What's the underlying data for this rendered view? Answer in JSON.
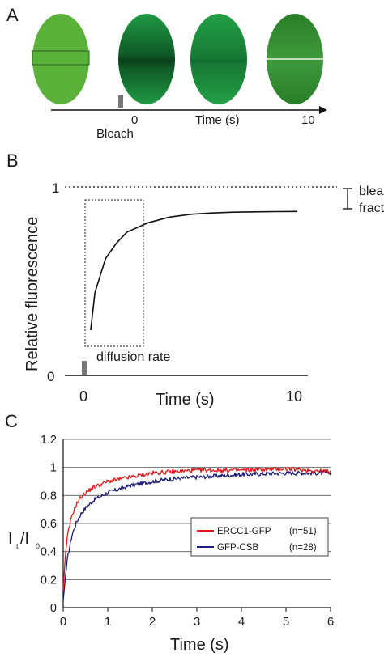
{
  "panels": {
    "a": {
      "letter": "A"
    },
    "b": {
      "letter": "B"
    },
    "c": {
      "letter": "C"
    }
  },
  "panel_a": {
    "axis_label": "Time (s)",
    "bleach_label": "Bleach",
    "tick_labels": [
      "0",
      "10"
    ],
    "cells": [
      {
        "state": "pre-bleach",
        "color": "#5ab23a"
      },
      {
        "state": "bleached",
        "color": "#1f8f3c"
      },
      {
        "state": "recovering",
        "color": "#239a40"
      },
      {
        "state": "recovered",
        "color": "#3c8a32"
      }
    ]
  },
  "panel_b": {
    "ylabel": "Relative fluorescence",
    "xlabel": "Time (s)",
    "x_ticks": [
      "0",
      "10"
    ],
    "y_ticks": [
      "0",
      "1"
    ],
    "annotations": {
      "bleached_fraction_line1": "bleached",
      "bleached_fraction_line2": "fraction",
      "diffusion_rate": "diffusion rate"
    }
  },
  "chart_data": [
    {
      "type": "line",
      "panel": "B",
      "xlabel": "Time (s)",
      "ylabel": "Relative fluorescence",
      "xlim": [
        0,
        10
      ],
      "ylim": [
        0,
        1
      ],
      "reference_line": {
        "y": 1,
        "style": "dotted"
      },
      "series": [
        {
          "x": [
            0.3,
            0.5,
            1,
            1.5,
            2,
            3,
            4,
            5,
            6,
            7,
            8,
            9,
            10
          ],
          "values": [
            0.24,
            0.44,
            0.62,
            0.7,
            0.76,
            0.81,
            0.84,
            0.855,
            0.862,
            0.866,
            0.868,
            0.869,
            0.87
          ]
        }
      ],
      "annotations": [
        "bleached fraction",
        "diffusion rate"
      ]
    },
    {
      "type": "line",
      "panel": "C",
      "xlabel": "Time (s)",
      "ylabel": "It/I0",
      "xlim": [
        0,
        6
      ],
      "ylim": [
        0,
        1.2
      ],
      "x_ticks": [
        "0",
        "1",
        "2",
        "3",
        "4",
        "5",
        "6"
      ],
      "y_ticks": [
        "0",
        "0.2",
        "0.4",
        "0.6",
        "0.8",
        "1",
        "1.2"
      ],
      "grid": true,
      "legend_position": "center-right",
      "series": [
        {
          "name": "ERCC1-GFP",
          "n_label": "(n=51)",
          "color": "#e01818",
          "x": [
            0,
            0.05,
            0.1,
            0.2,
            0.3,
            0.4,
            0.5,
            0.7,
            1.0,
            1.5,
            2.0,
            2.5,
            3.0,
            4.0,
            5.0,
            6.0
          ],
          "values": [
            0.12,
            0.38,
            0.52,
            0.66,
            0.74,
            0.79,
            0.82,
            0.86,
            0.9,
            0.93,
            0.96,
            0.97,
            0.98,
            0.98,
            0.99,
            0.97
          ]
        },
        {
          "name": "GFP-CSB",
          "n_label": "(n=28)",
          "color": "#1c1c7c",
          "x": [
            0,
            0.05,
            0.1,
            0.2,
            0.3,
            0.4,
            0.5,
            0.7,
            1.0,
            1.5,
            2.0,
            2.5,
            3.0,
            4.0,
            5.0,
            6.0
          ],
          "values": [
            0.05,
            0.22,
            0.36,
            0.52,
            0.61,
            0.67,
            0.71,
            0.77,
            0.82,
            0.87,
            0.9,
            0.92,
            0.93,
            0.95,
            0.96,
            0.96
          ]
        }
      ]
    }
  ],
  "panel_c_ylabel_main": "I",
  "panel_c_ylabel_sub_t": "t",
  "panel_c_ylabel_slash": "/I",
  "panel_c_ylabel_sub_0": "0"
}
